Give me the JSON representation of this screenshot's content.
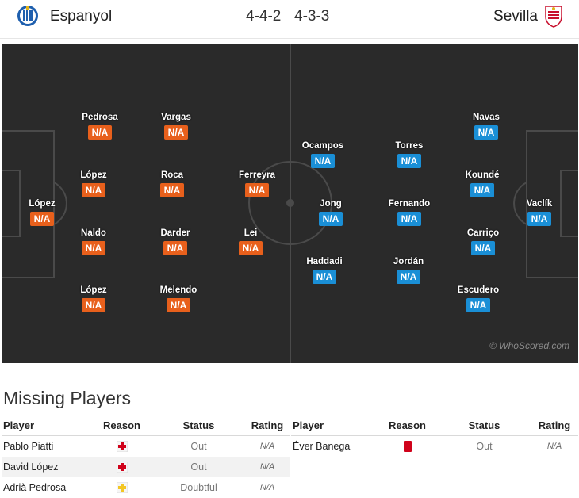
{
  "header": {
    "home_team": "Espanyol",
    "away_team": "Sevilla",
    "home_formation": "4-4-2",
    "away_formation": "4-3-3"
  },
  "colors": {
    "home_rating": "#e8601c",
    "away_rating": "#1a8fd6",
    "pitch": "#2a2a2a"
  },
  "icons": {
    "home_crest": "espanyol-crest-icon",
    "away_crest": "sevilla-crest-icon"
  },
  "pitch": {
    "home_players": [
      {
        "name": "López",
        "rating": "N/A"
      },
      {
        "name": "Pedrosa",
        "rating": "N/A"
      },
      {
        "name": "López",
        "rating": "N/A"
      },
      {
        "name": "Naldo",
        "rating": "N/A"
      },
      {
        "name": "López",
        "rating": "N/A"
      },
      {
        "name": "Vargas",
        "rating": "N/A"
      },
      {
        "name": "Roca",
        "rating": "N/A"
      },
      {
        "name": "Darder",
        "rating": "N/A"
      },
      {
        "name": "Melendo",
        "rating": "N/A"
      },
      {
        "name": "Ferreyra",
        "rating": "N/A"
      },
      {
        "name": "Lei",
        "rating": "N/A"
      }
    ],
    "away_players": [
      {
        "name": "Ocampos",
        "rating": "N/A"
      },
      {
        "name": "Jong",
        "rating": "N/A"
      },
      {
        "name": "Haddadi",
        "rating": "N/A"
      },
      {
        "name": "Torres",
        "rating": "N/A"
      },
      {
        "name": "Fernando",
        "rating": "N/A"
      },
      {
        "name": "Jordán",
        "rating": "N/A"
      },
      {
        "name": "Navas",
        "rating": "N/A"
      },
      {
        "name": "Koundé",
        "rating": "N/A"
      },
      {
        "name": "Carriço",
        "rating": "N/A"
      },
      {
        "name": "Escudero",
        "rating": "N/A"
      },
      {
        "name": "Vaclík",
        "rating": "N/A"
      }
    ],
    "watermark": "© WhoScored.com"
  },
  "missing": {
    "title": "Missing Players",
    "columns": [
      "Player",
      "Reason",
      "Status",
      "Rating"
    ],
    "home": [
      {
        "player": "Pablo Piatti",
        "reason": "injury-icon",
        "status": "Out",
        "rating": "N/A"
      },
      {
        "player": "David López",
        "reason": "injury-icon",
        "status": "Out",
        "rating": "N/A"
      },
      {
        "player": "Adrià Pedrosa",
        "reason": "doubtful-injury-icon",
        "status": "Doubtful",
        "rating": "N/A"
      }
    ],
    "away": [
      {
        "player": "Éver Banega",
        "reason": "red-card-icon",
        "status": "Out",
        "rating": "N/A"
      }
    ]
  }
}
